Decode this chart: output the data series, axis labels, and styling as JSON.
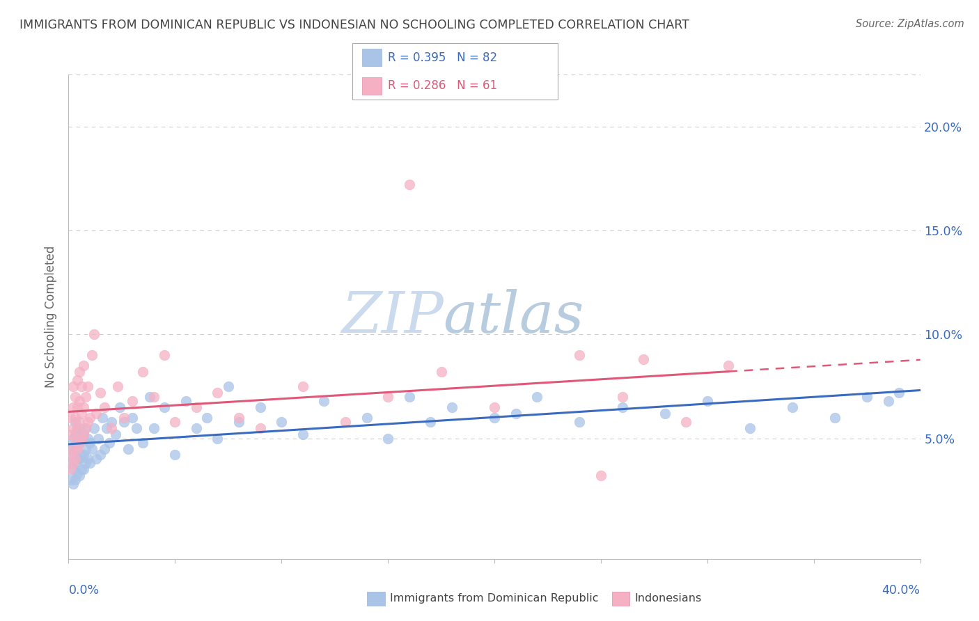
{
  "title": "IMMIGRANTS FROM DOMINICAN REPUBLIC VS INDONESIAN NO SCHOOLING COMPLETED CORRELATION CHART",
  "source": "Source: ZipAtlas.com",
  "ylabel": "No Schooling Completed",
  "y_ticks": [
    0.05,
    0.1,
    0.15,
    0.2
  ],
  "y_tick_labels": [
    "5.0%",
    "10.0%",
    "15.0%",
    "20.0%"
  ],
  "xlim": [
    0.0,
    0.4
  ],
  "ylim": [
    -0.008,
    0.225
  ],
  "legend_r_blue": "R = 0.395",
  "legend_n_blue": "N = 82",
  "legend_r_pink": "R = 0.286",
  "legend_n_pink": "N = 61",
  "blue_color": "#aac4e8",
  "pink_color": "#f5b0c4",
  "blue_line_color": "#3a6bbf",
  "pink_line_color": "#e05878",
  "watermark_zip": "ZIP",
  "watermark_atlas": "atlas",
  "watermark_color_zip": "#c8d8ee",
  "watermark_color_atlas": "#b8d0e8",
  "blue_scatter_x": [
    0.001,
    0.001,
    0.001,
    0.002,
    0.002,
    0.002,
    0.002,
    0.003,
    0.003,
    0.003,
    0.003,
    0.003,
    0.004,
    0.004,
    0.004,
    0.004,
    0.005,
    0.005,
    0.005,
    0.005,
    0.006,
    0.006,
    0.006,
    0.007,
    0.007,
    0.007,
    0.008,
    0.008,
    0.008,
    0.009,
    0.009,
    0.01,
    0.01,
    0.011,
    0.012,
    0.013,
    0.014,
    0.015,
    0.016,
    0.017,
    0.018,
    0.019,
    0.02,
    0.022,
    0.024,
    0.026,
    0.028,
    0.03,
    0.032,
    0.035,
    0.038,
    0.04,
    0.045,
    0.05,
    0.055,
    0.06,
    0.065,
    0.07,
    0.075,
    0.08,
    0.09,
    0.1,
    0.11,
    0.12,
    0.14,
    0.15,
    0.16,
    0.17,
    0.18,
    0.2,
    0.21,
    0.22,
    0.24,
    0.26,
    0.28,
    0.3,
    0.32,
    0.34,
    0.36,
    0.375,
    0.385,
    0.39
  ],
  "blue_scatter_y": [
    0.03,
    0.038,
    0.045,
    0.028,
    0.035,
    0.042,
    0.05,
    0.03,
    0.038,
    0.045,
    0.052,
    0.058,
    0.033,
    0.04,
    0.048,
    0.055,
    0.032,
    0.04,
    0.048,
    0.055,
    0.035,
    0.042,
    0.05,
    0.035,
    0.042,
    0.052,
    0.038,
    0.045,
    0.055,
    0.04,
    0.05,
    0.038,
    0.048,
    0.045,
    0.055,
    0.04,
    0.05,
    0.042,
    0.06,
    0.045,
    0.055,
    0.048,
    0.058,
    0.052,
    0.065,
    0.058,
    0.045,
    0.06,
    0.055,
    0.048,
    0.07,
    0.055,
    0.065,
    0.042,
    0.068,
    0.055,
    0.06,
    0.05,
    0.075,
    0.058,
    0.065,
    0.058,
    0.052,
    0.068,
    0.06,
    0.05,
    0.07,
    0.058,
    0.065,
    0.06,
    0.062,
    0.07,
    0.058,
    0.065,
    0.062,
    0.068,
    0.055,
    0.065,
    0.06,
    0.07,
    0.068,
    0.072
  ],
  "pink_scatter_x": [
    0.001,
    0.001,
    0.001,
    0.001,
    0.002,
    0.002,
    0.002,
    0.002,
    0.002,
    0.003,
    0.003,
    0.003,
    0.003,
    0.004,
    0.004,
    0.004,
    0.004,
    0.005,
    0.005,
    0.005,
    0.005,
    0.006,
    0.006,
    0.006,
    0.007,
    0.007,
    0.007,
    0.008,
    0.008,
    0.009,
    0.009,
    0.01,
    0.011,
    0.012,
    0.013,
    0.015,
    0.017,
    0.02,
    0.023,
    0.026,
    0.03,
    0.035,
    0.04,
    0.045,
    0.05,
    0.06,
    0.07,
    0.08,
    0.09,
    0.11,
    0.13,
    0.15,
    0.16,
    0.175,
    0.2,
    0.24,
    0.26,
    0.29,
    0.31,
    0.27,
    0.25
  ],
  "pink_scatter_y": [
    0.035,
    0.042,
    0.052,
    0.06,
    0.038,
    0.045,
    0.055,
    0.065,
    0.075,
    0.04,
    0.05,
    0.06,
    0.07,
    0.045,
    0.055,
    0.065,
    0.078,
    0.048,
    0.058,
    0.068,
    0.082,
    0.05,
    0.062,
    0.075,
    0.052,
    0.065,
    0.085,
    0.055,
    0.07,
    0.058,
    0.075,
    0.06,
    0.09,
    0.1,
    0.062,
    0.072,
    0.065,
    0.055,
    0.075,
    0.06,
    0.068,
    0.082,
    0.07,
    0.09,
    0.058,
    0.065,
    0.072,
    0.06,
    0.055,
    0.075,
    0.058,
    0.07,
    0.172,
    0.082,
    0.065,
    0.09,
    0.07,
    0.058,
    0.085,
    0.088,
    0.032
  ]
}
